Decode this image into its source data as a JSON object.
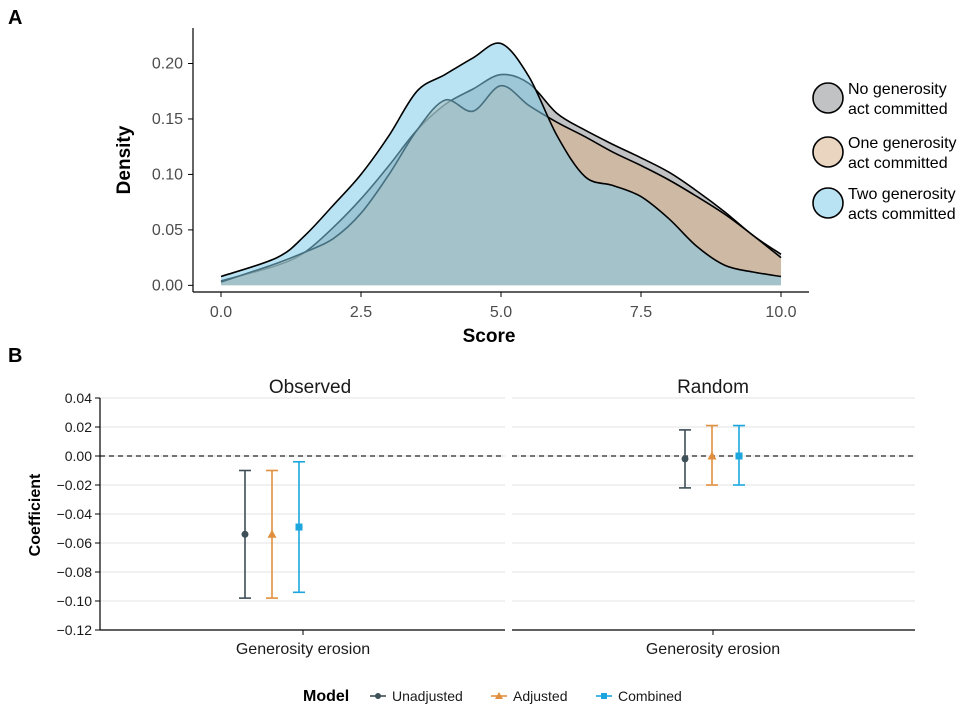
{
  "chart_data": [
    {
      "panel": "A",
      "type": "area",
      "xlabel": "Score",
      "ylabel": "Density",
      "xlim": [
        -0.5,
        10.5
      ],
      "ylim": [
        -0.006,
        0.232
      ],
      "xticks": [
        0,
        2.5,
        5,
        7.5,
        10
      ],
      "xtick_labels": [
        "0.0",
        "2.5",
        "5.0",
        "7.5",
        "10.0"
      ],
      "yticks": [
        0,
        0.05,
        0.1,
        0.15,
        0.2
      ],
      "ytick_labels": [
        "0.00",
        "0.05",
        "0.10",
        "0.15",
        "0.20"
      ],
      "legend_position": "right",
      "series": [
        {
          "name": "No generosity act committed",
          "color": "#8c8f91",
          "x": [
            0,
            1,
            1.5,
            2,
            2.5,
            3,
            3.5,
            4,
            4.5,
            5,
            5.5,
            6,
            6.5,
            7,
            7.5,
            8,
            8.5,
            9,
            9.5,
            10
          ],
          "y": [
            0.004,
            0.018,
            0.03,
            0.052,
            0.078,
            0.108,
            0.14,
            0.163,
            0.177,
            0.19,
            0.182,
            0.155,
            0.14,
            0.127,
            0.115,
            0.102,
            0.085,
            0.066,
            0.045,
            0.028
          ]
        },
        {
          "name": "One generosity act committed",
          "color": "#d9b38c",
          "x": [
            0,
            1,
            1.5,
            2,
            2.5,
            3,
            3.5,
            4,
            4.5,
            5,
            5.5,
            6,
            6.5,
            7,
            7.5,
            8,
            8.5,
            9,
            9.5,
            10
          ],
          "y": [
            0.003,
            0.02,
            0.03,
            0.042,
            0.065,
            0.1,
            0.14,
            0.167,
            0.157,
            0.18,
            0.162,
            0.147,
            0.134,
            0.12,
            0.108,
            0.095,
            0.08,
            0.064,
            0.045,
            0.025
          ]
        },
        {
          "name": "Two generosity acts committed",
          "color": "#7fcbe8",
          "x": [
            0,
            1,
            1.5,
            2,
            2.5,
            3,
            3.5,
            4,
            4.5,
            5,
            5.5,
            6,
            6.5,
            7,
            7.5,
            8,
            8.5,
            9,
            9.5,
            10
          ],
          "y": [
            0.008,
            0.025,
            0.045,
            0.072,
            0.1,
            0.135,
            0.175,
            0.19,
            0.205,
            0.218,
            0.188,
            0.135,
            0.098,
            0.09,
            0.08,
            0.06,
            0.035,
            0.018,
            0.012,
            0.008
          ]
        }
      ]
    },
    {
      "panel": "B",
      "type": "scatter",
      "ylabel": "Coefficient",
      "ylim": [
        -0.12,
        0.04
      ],
      "yticks": [
        -0.12,
        -0.1,
        -0.08,
        -0.06,
        -0.04,
        -0.02,
        0,
        0.02,
        0.04
      ],
      "ytick_labels": [
        "−0.12",
        "−0.10",
        "−0.08",
        "−0.06",
        "−0.04",
        "−0.02",
        "0.00",
        "0.02",
        "0.04"
      ],
      "reference_line_y": 0,
      "category": "Generosity erosion",
      "facets": [
        "Observed",
        "Random"
      ],
      "legend_title": "Model",
      "legend_position": "bottom",
      "series": [
        {
          "name": "Unadjusted",
          "color": "#3d4f57",
          "marker": "circle",
          "estimate": [
            -0.054,
            -0.002
          ],
          "lower": [
            -0.098,
            -0.022
          ],
          "upper": [
            -0.01,
            0.018
          ]
        },
        {
          "name": "Adjusted",
          "color": "#e08f3e",
          "marker": "triangle",
          "estimate": [
            -0.054,
            0.0
          ],
          "lower": [
            -0.098,
            -0.02
          ],
          "upper": [
            -0.01,
            0.021
          ]
        },
        {
          "name": "Combined",
          "color": "#1da6de",
          "marker": "square",
          "estimate": [
            -0.049,
            0.0
          ],
          "lower": [
            -0.094,
            -0.02
          ],
          "upper": [
            -0.004,
            0.021
          ]
        }
      ]
    }
  ],
  "labels": {
    "panel_a": "A",
    "panel_b": "B",
    "legend_a": [
      [
        "No generosity",
        "act committed"
      ],
      [
        "One generosity",
        "act committed"
      ],
      [
        "Two generosity",
        "acts committed"
      ]
    ]
  }
}
